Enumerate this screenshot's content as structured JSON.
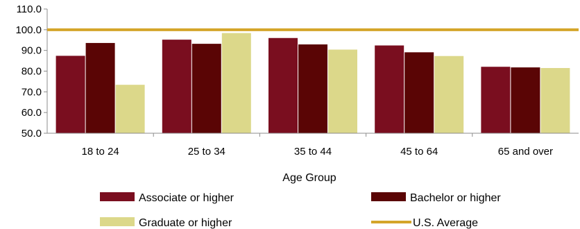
{
  "chart_data": {
    "type": "bar",
    "title": "",
    "xlabel": "Age Group",
    "ylabel": "",
    "ylim": [
      50,
      110
    ],
    "yticks": [
      "50.0",
      "60.0",
      "70.0",
      "80.0",
      "90.0",
      "100.0",
      "110.0"
    ],
    "categories": [
      "18 to 24",
      "25 to 34",
      "35 to 44",
      "45 to 64",
      "65 and over"
    ],
    "series": [
      {
        "name": "Associate or higher",
        "color": "#7a0e1f",
        "values": [
          87.4,
          95.2,
          96.0,
          92.4,
          82.1
        ]
      },
      {
        "name": "Bachelor or higher",
        "color": "#5a0505",
        "values": [
          93.6,
          93.2,
          92.9,
          89.1,
          81.8
        ]
      },
      {
        "name": "Graduate or higher",
        "color": "#dcd88a",
        "values": [
          73.4,
          98.4,
          90.4,
          87.3,
          81.5
        ]
      }
    ],
    "reference_line": {
      "name": "U.S. Average",
      "value": 100.0,
      "color": "#d4a52a"
    },
    "legend_position": "bottom",
    "grid": false
  }
}
